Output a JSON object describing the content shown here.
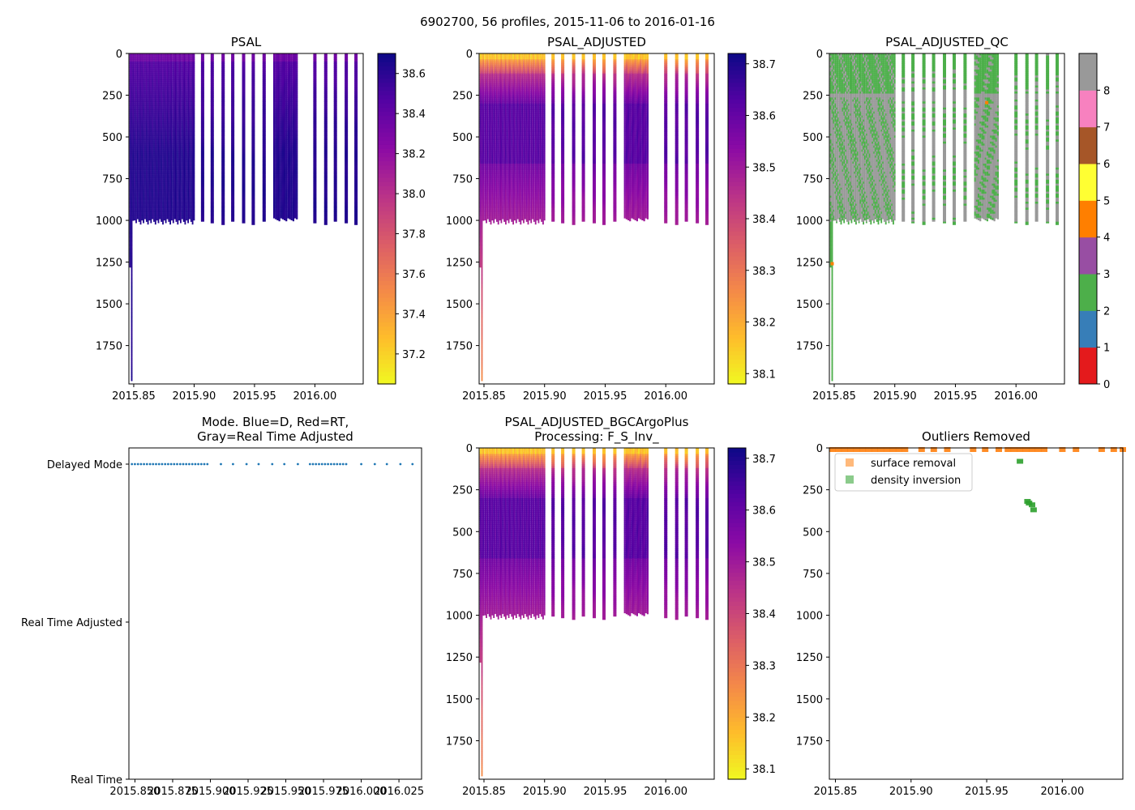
{
  "suptitle": "6902700, 56 profiles, 2015-11-06 to 2016-01-16",
  "chart_data": [
    {
      "type": "heatmap",
      "title": "PSAL",
      "x_ticks": [
        "2015.85",
        "2015.90",
        "2015.95",
        "2016.00"
      ],
      "y_ticks": [
        "0",
        "250",
        "500",
        "750",
        "1000",
        "1250",
        "1500",
        "1750"
      ],
      "xlim": [
        2015.846,
        2016.04
      ],
      "ylim": [
        1980,
        0
      ],
      "colorbar": {
        "cmap": "plasma_r",
        "range": [
          37.05,
          38.7
        ],
        "ticks": [
          "37.2",
          "37.4",
          "37.6",
          "37.8",
          "38.0",
          "38.2",
          "38.4",
          "38.6"
        ]
      }
    },
    {
      "type": "heatmap",
      "title": "PSAL_ADJUSTED",
      "x_ticks": [
        "2015.85",
        "2015.90",
        "2015.95",
        "2016.00"
      ],
      "y_ticks": [
        "0",
        "250",
        "500",
        "750",
        "1000",
        "1250",
        "1500",
        "1750"
      ],
      "xlim": [
        2015.846,
        2016.04
      ],
      "ylim": [
        1980,
        0
      ],
      "colorbar": {
        "cmap": "plasma_r",
        "range": [
          38.08,
          38.72
        ],
        "ticks": [
          "38.1",
          "38.2",
          "38.3",
          "38.4",
          "38.5",
          "38.6",
          "38.7"
        ]
      }
    },
    {
      "type": "heatmap",
      "title": "PSAL_ADJUSTED_QC",
      "x_ticks": [
        "2015.85",
        "2015.90",
        "2015.95",
        "2016.00"
      ],
      "y_ticks": [
        "0",
        "250",
        "500",
        "750",
        "1000",
        "1250",
        "1500",
        "1750"
      ],
      "xlim": [
        2015.846,
        2016.04
      ],
      "ylim": [
        1980,
        0
      ],
      "colorbar": {
        "cmap": "qc_categorical",
        "ticks": [
          "0",
          "1",
          "2",
          "3",
          "4",
          "5",
          "6",
          "7",
          "8"
        ],
        "colors": [
          "#e41a1c",
          "#377eb8",
          "#4daf4a",
          "#984ea3",
          "#ff7f00",
          "#ffff33",
          "#a65628",
          "#f781bf",
          "#999999"
        ]
      }
    },
    {
      "type": "scatter",
      "title": "Mode. Blue=D, Red=RT,",
      "title_line2": "Gray=Real Time Adjusted",
      "x_ticks": [
        "2015.850",
        "2015.875",
        "2015.900",
        "2015.925",
        "2015.950",
        "2015.975",
        "2016.000",
        "2016.025"
      ],
      "y_ticks": [
        "Delayed Mode",
        "Real Time Adjusted",
        "Real Time"
      ],
      "xlim": [
        2015.846,
        2016.04
      ],
      "series": [
        {
          "name": "Delayed Mode",
          "color": "#1f77b4",
          "x": [
            2015.848,
            2015.85,
            2015.852,
            2015.854,
            2015.856,
            2015.858,
            2015.86,
            2015.862,
            2015.864,
            2015.866,
            2015.868,
            2015.87,
            2015.872,
            2015.874,
            2015.876,
            2015.878,
            2015.88,
            2015.882,
            2015.884,
            2015.886,
            2015.888,
            2015.89,
            2015.892,
            2015.894,
            2015.896,
            2015.898,
            2015.907,
            2015.915,
            2015.924,
            2015.932,
            2015.941,
            2015.949,
            2015.958,
            2015.966,
            2015.968,
            2015.97,
            2015.972,
            2015.974,
            2015.976,
            2015.978,
            2015.98,
            2015.982,
            2015.984,
            2015.986,
            2015.988,
            2015.99,
            2016.0,
            2016.009,
            2016.017,
            2016.026,
            2016.034
          ]
        }
      ]
    },
    {
      "type": "heatmap",
      "title": "PSAL_ADJUSTED_BGCArgoPlus",
      "title_line2": "Processing: F_S_Inv_",
      "x_ticks": [
        "2015.85",
        "2015.90",
        "2015.95",
        "2016.00"
      ],
      "y_ticks": [
        "0",
        "250",
        "500",
        "750",
        "1000",
        "1250",
        "1500",
        "1750"
      ],
      "xlim": [
        2015.846,
        2016.04
      ],
      "ylim": [
        1980,
        0
      ],
      "colorbar": {
        "cmap": "plasma_r",
        "range": [
          38.08,
          38.72
        ],
        "ticks": [
          "38.1",
          "38.2",
          "38.3",
          "38.4",
          "38.5",
          "38.6",
          "38.7"
        ]
      }
    },
    {
      "type": "scatter",
      "title": "Outliers Removed",
      "x_ticks": [
        "2015.85",
        "2015.90",
        "2015.95",
        "2016.00"
      ],
      "y_ticks": [
        "0",
        "250",
        "500",
        "750",
        "1000",
        "1250",
        "1500",
        "1750"
      ],
      "xlim": [
        2015.846,
        2016.04
      ],
      "ylim": [
        1980,
        0
      ],
      "legend": {
        "placement": "upper-left"
      },
      "series": [
        {
          "name": "surface removal",
          "color": "#ff7f0e",
          "x": [
            2015.848,
            2015.852,
            2015.856,
            2015.86,
            2015.864,
            2015.868,
            2015.872,
            2015.876,
            2015.88,
            2015.884,
            2015.888,
            2015.892,
            2015.896,
            2015.907,
            2015.915,
            2015.924,
            2015.941,
            2015.949,
            2015.958,
            2015.964,
            2015.968,
            2015.972,
            2015.976,
            2015.98,
            2015.984,
            2015.988,
            2016.0,
            2016.009,
            2016.026,
            2016.034,
            2016.04
          ],
          "y": [
            0,
            0,
            0,
            0,
            0,
            0,
            0,
            0,
            0,
            0,
            0,
            0,
            0,
            0,
            0,
            0,
            0,
            0,
            0,
            0,
            0,
            0,
            0,
            0,
            0,
            0,
            0,
            0,
            0,
            0,
            0
          ]
        },
        {
          "name": "density inversion",
          "color": "#2ca02c",
          "x": [
            2015.972,
            2015.977,
            2015.978,
            2015.98,
            2015.981
          ],
          "y": [
            70,
            310,
            320,
            330,
            360
          ]
        }
      ]
    }
  ]
}
